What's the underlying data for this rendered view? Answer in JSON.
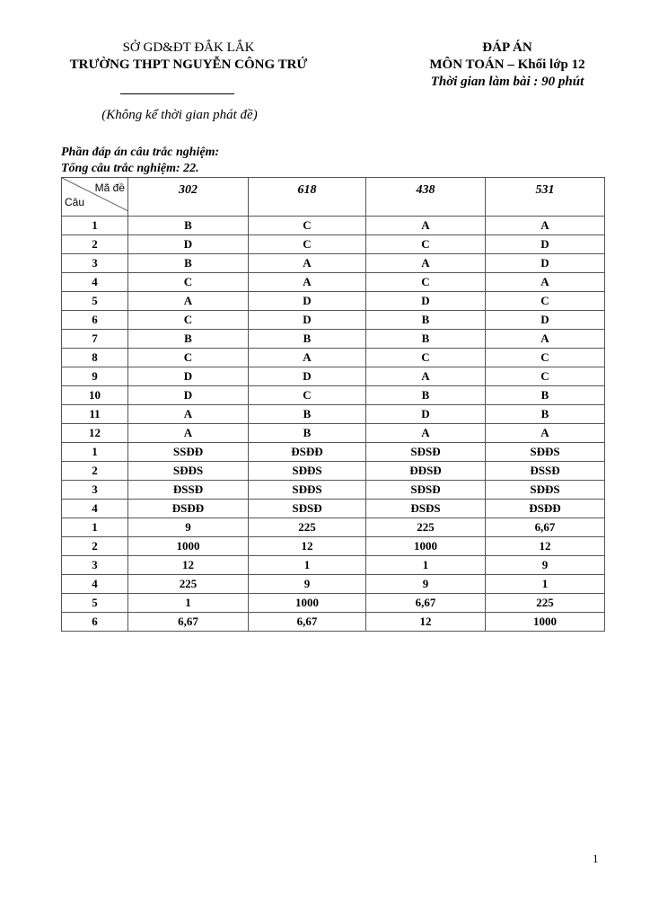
{
  "header_left": {
    "line1": "SỞ GD&ĐT ĐẮK LẮK",
    "line2": "TRƯỜNG THPT NGUYỄN CÔNG TRỨ",
    "note": "(Không kể thời gian phát đề)"
  },
  "header_right": {
    "title": "ĐÁP ÁN",
    "subject": "MÔN TOÁN – Khối lớp 12",
    "time": "Thời gian làm bài : 90 phút"
  },
  "section_title": "Phần đáp án câu trắc nghiệm:",
  "total": "Tổng câu trắc nghiệm: 22.",
  "table": {
    "corner_top": "Mã đề",
    "corner_bottom": "Câu",
    "codes": [
      "302",
      "618",
      "438",
      "531"
    ],
    "rows": [
      [
        "1",
        "B",
        "C",
        "A",
        "A"
      ],
      [
        "2",
        "D",
        "C",
        "C",
        "D"
      ],
      [
        "3",
        "B",
        "A",
        "A",
        "D"
      ],
      [
        "4",
        "C",
        "A",
        "C",
        "A"
      ],
      [
        "5",
        "A",
        "D",
        "D",
        "C"
      ],
      [
        "6",
        "C",
        "D",
        "B",
        "D"
      ],
      [
        "7",
        "B",
        "B",
        "B",
        "A"
      ],
      [
        "8",
        "C",
        "A",
        "C",
        "C"
      ],
      [
        "9",
        "D",
        "D",
        "A",
        "C"
      ],
      [
        "10",
        "D",
        "C",
        "B",
        "B"
      ],
      [
        "11",
        "A",
        "B",
        "D",
        "B"
      ],
      [
        "12",
        "A",
        "B",
        "A",
        "A"
      ],
      [
        "1",
        "SSĐĐ",
        "ĐSĐĐ",
        "SĐSĐ",
        "SĐĐS"
      ],
      [
        "2",
        "SĐĐS",
        "SĐĐS",
        "ĐĐSĐ",
        "ĐSSĐ"
      ],
      [
        "3",
        "ĐSSĐ",
        "SĐĐS",
        "SĐSĐ",
        "SĐĐS"
      ],
      [
        "4",
        "ĐSĐĐ",
        "SĐSĐ",
        "ĐSĐS",
        "ĐSĐĐ"
      ],
      [
        "1",
        "9",
        "225",
        "225",
        "6,67"
      ],
      [
        "2",
        "1000",
        "12",
        "1000",
        "12"
      ],
      [
        "3",
        "12",
        "1",
        "1",
        "9"
      ],
      [
        "4",
        "225",
        "9",
        "9",
        "1"
      ],
      [
        "5",
        "1",
        "1000",
        "6,67",
        "225"
      ],
      [
        "6",
        "6,67",
        "6,67",
        "12",
        "1000"
      ]
    ]
  },
  "page_number": "1"
}
